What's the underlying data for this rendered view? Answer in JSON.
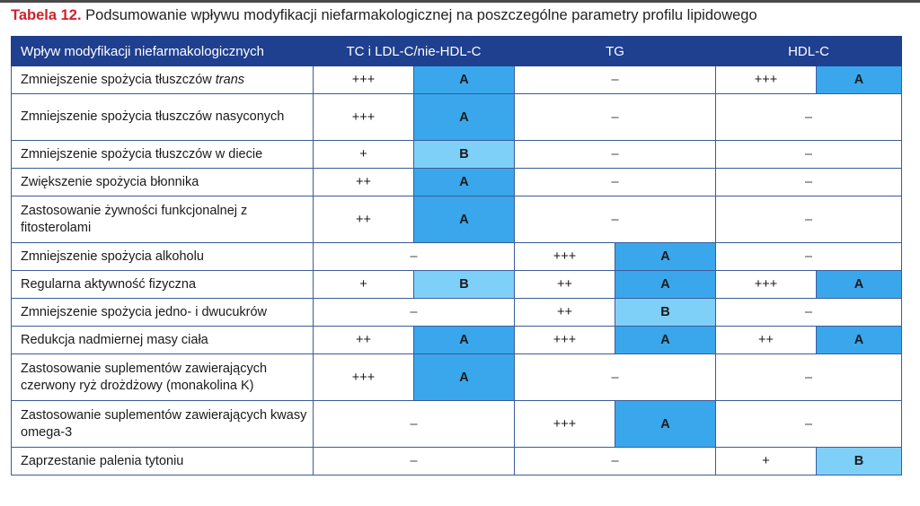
{
  "title": {
    "number": "Tabela 12.",
    "text": "Podsumowanie wpływu modyfikacji niefarmakologicznej na poszczególne parametry profilu lipidowego"
  },
  "headers": [
    "Wpływ modyfikacji niefarmakologicznych",
    "TC i LDL-C/nie-HDL-C",
    "TG",
    "HDL-C"
  ],
  "colors": {
    "header": "#1f3f8f",
    "grade_A": "#3aa7ec",
    "grade_B": "#7fd0f8",
    "title_number": "#d0202e"
  },
  "rows": [
    {
      "label": "Zmniejszenie spożycia tłuszczów ",
      "label_italic": "trans",
      "tall": false,
      "tc": {
        "plus": "+++",
        "grade": "A"
      },
      "tg": {
        "dash": "–"
      },
      "hdl": {
        "plus": "+++",
        "grade": "A"
      }
    },
    {
      "label": "Zmniejszenie spożycia tłuszczów nasyconych",
      "tall": true,
      "tc": {
        "plus": "+++",
        "grade": "A"
      },
      "tg": {
        "dash": "–"
      },
      "hdl": {
        "dash": "–"
      }
    },
    {
      "label": "Zmniejszenie spożycia tłuszczów w diecie",
      "tall": false,
      "tc": {
        "plus": "+",
        "grade": "B"
      },
      "tg": {
        "dash": "–"
      },
      "hdl": {
        "dash": "–"
      }
    },
    {
      "label": "Zwiększenie spożycia błonnika",
      "tall": false,
      "tc": {
        "plus": "++",
        "grade": "A"
      },
      "tg": {
        "dash": "–"
      },
      "hdl": {
        "dash": "–"
      }
    },
    {
      "label": "Zastosowanie żywności funkcjonalnej z fitosterolami",
      "tall": true,
      "tc": {
        "plus": "++",
        "grade": "A"
      },
      "tg": {
        "dash": "–"
      },
      "hdl": {
        "dash": "–"
      }
    },
    {
      "label": "Zmniejszenie spożycia alkoholu",
      "tall": false,
      "tc": {
        "dash": "–"
      },
      "tg": {
        "plus": "+++",
        "grade": "A"
      },
      "hdl": {
        "dash": "–"
      }
    },
    {
      "label": "Regularna aktywność fizyczna",
      "tall": false,
      "tc": {
        "plus": "+",
        "grade": "B"
      },
      "tg": {
        "plus": "++",
        "grade": "A"
      },
      "hdl": {
        "plus": "+++",
        "grade": "A"
      }
    },
    {
      "label": "Zmniejszenie spożycia jedno- i dwucukrów",
      "tall": false,
      "tc": {
        "dash": "–"
      },
      "tg": {
        "plus": "++",
        "grade": "B"
      },
      "hdl": {
        "dash": "–"
      }
    },
    {
      "label": "Redukcja nadmiernej masy ciała",
      "tall": false,
      "tc": {
        "plus": "++",
        "grade": "A"
      },
      "tg": {
        "plus": "+++",
        "grade": "A"
      },
      "hdl": {
        "plus": "++",
        "grade": "A"
      }
    },
    {
      "label": "Zastosowanie suplementów zawierających czerwony ryż drożdżowy (monakolina K)",
      "tall": true,
      "tc": {
        "plus": "+++",
        "grade": "A"
      },
      "tg": {
        "dash": "–"
      },
      "hdl": {
        "dash": "–"
      }
    },
    {
      "label": "Zastosowanie suplementów zawierających kwasy omega-3",
      "tall": true,
      "tc": {
        "dash": "–"
      },
      "tg": {
        "plus": "+++",
        "grade": "A"
      },
      "hdl": {
        "dash": "–"
      }
    },
    {
      "label": "Zaprzestanie palenia tytoniu",
      "tall": false,
      "tc": {
        "dash": "–"
      },
      "tg": {
        "dash": "–"
      },
      "hdl": {
        "plus": "+",
        "grade": "B"
      }
    }
  ]
}
